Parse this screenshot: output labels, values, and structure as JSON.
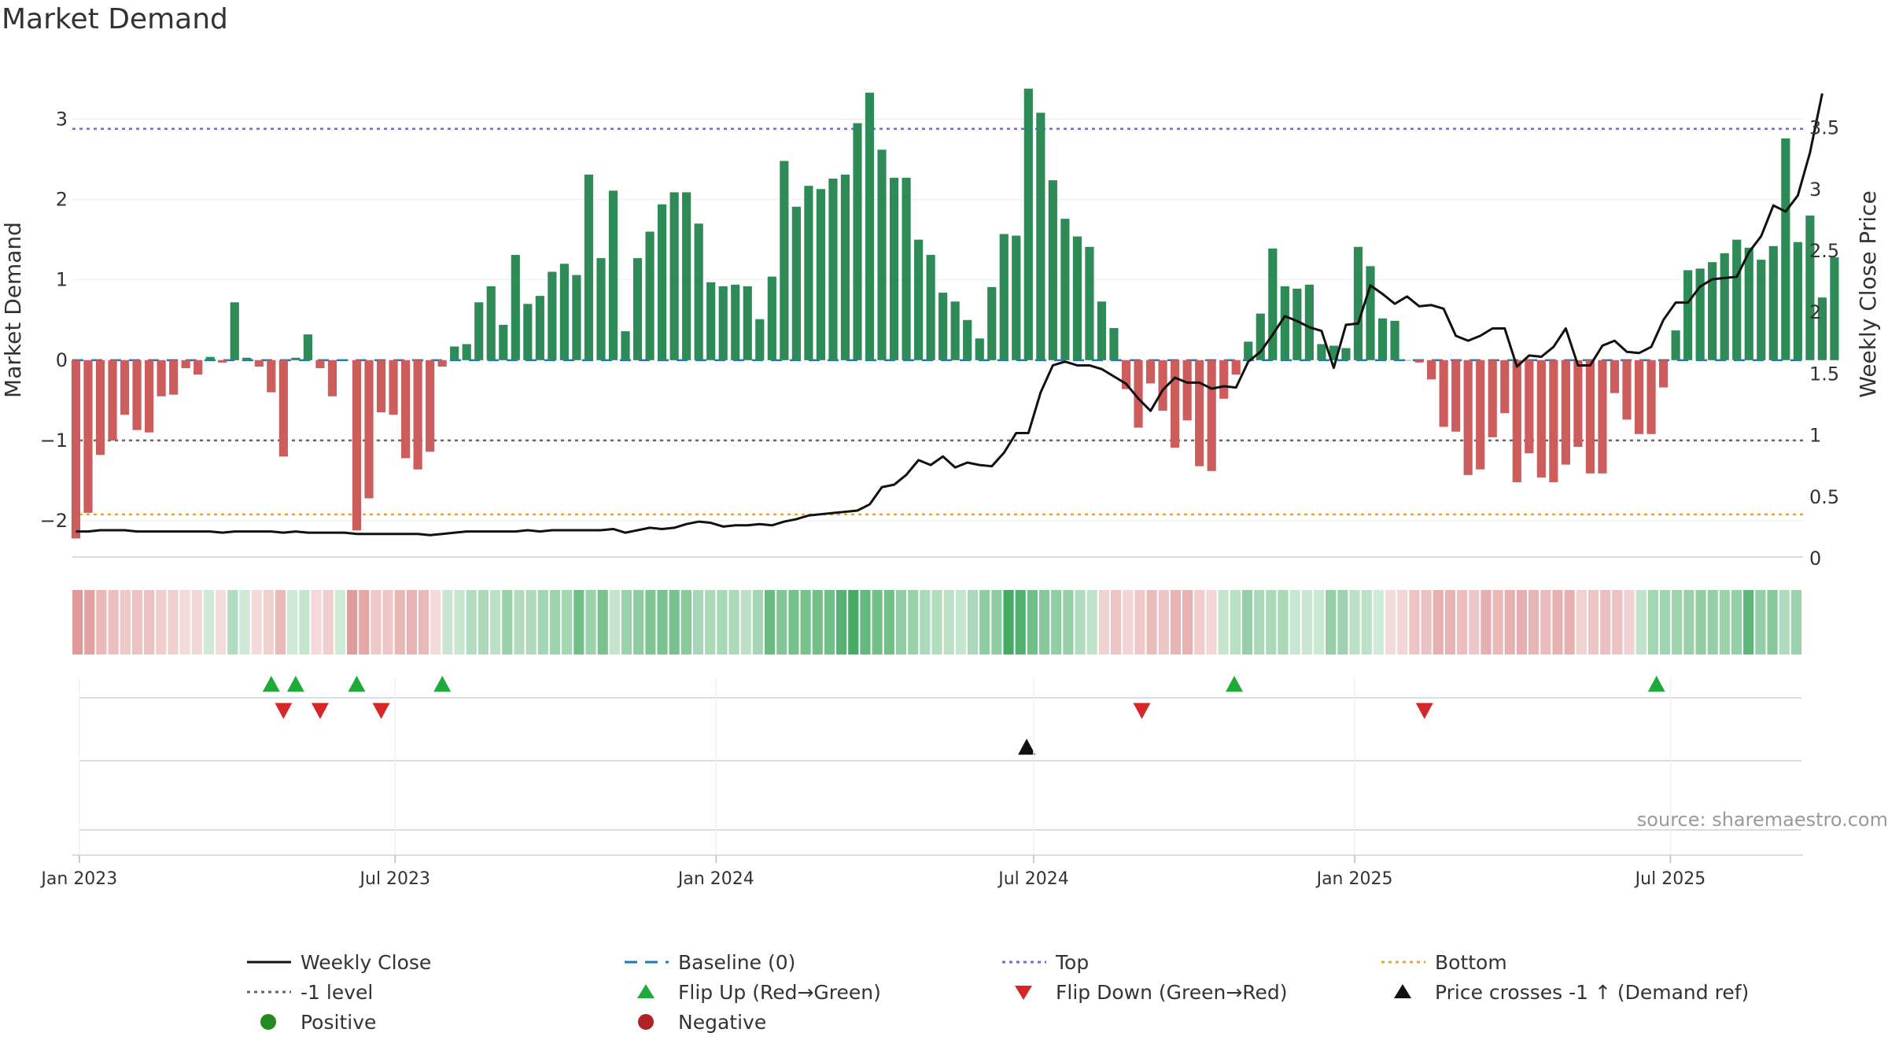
{
  "title": "Market Demand",
  "source_text": "source: sharemaestro.com",
  "colors": {
    "positive_bar": "#2e8b57",
    "negative_bar": "#cd5c5c",
    "price_line": "#111111",
    "baseline": "#1f77b4",
    "top": "#6a6ad8",
    "bottom": "#e6a23c",
    "minus1": "#666666",
    "flip_up": "#1faa3a",
    "flip_down": "#d62728",
    "price_cross": "#111111",
    "positive_dot": "#228b22",
    "negative_dot": "#b22222"
  },
  "chart_data": {
    "type": "bar",
    "title": "Market Demand",
    "ylabel": "Market Demand",
    "y2label": "Weekly Close Price",
    "ylim": [
      -2.45,
      3.7
    ],
    "y2lim": [
      0,
      3.9
    ],
    "y_ticks": [
      3,
      2,
      1,
      0,
      -1,
      -2
    ],
    "y2_ticks": [
      3.5,
      3,
      2.5,
      2,
      1.5,
      1,
      0.5,
      0
    ],
    "x_range": [
      "2022-12-28",
      "2025-09-15"
    ],
    "x_ticks": [
      {
        "date": "2023-01-01",
        "label": "Jan 2023"
      },
      {
        "date": "2023-07-01",
        "label": "Jul 2023"
      },
      {
        "date": "2024-01-01",
        "label": "Jan 2024"
      },
      {
        "date": "2024-07-01",
        "label": "Jul 2024"
      },
      {
        "date": "2025-01-01",
        "label": "Jan 2025"
      },
      {
        "date": "2025-07-01",
        "label": "Jul 2025"
      }
    ],
    "weeks_start": "2022-12-30",
    "demand": [
      -2.22,
      -1.9,
      -1.18,
      -1.0,
      -0.68,
      -0.87,
      -0.9,
      -0.45,
      -0.43,
      -0.1,
      -0.18,
      0.04,
      -0.03,
      0.72,
      0.03,
      -0.08,
      -0.4,
      -1.2,
      0.03,
      0.32,
      -0.1,
      -0.45,
      0.0,
      -2.12,
      -1.72,
      -0.65,
      -0.68,
      -1.22,
      -1.36,
      -1.14,
      -0.08,
      0.17,
      0.2,
      0.72,
      0.92,
      0.44,
      1.31,
      0.7,
      0.8,
      1.1,
      1.2,
      1.06,
      2.31,
      1.27,
      2.11,
      0.36,
      1.27,
      1.6,
      1.94,
      2.09,
      2.09,
      1.7,
      0.97,
      0.92,
      0.94,
      0.92,
      0.51,
      1.04,
      2.48,
      1.91,
      2.17,
      2.13,
      2.26,
      2.31,
      2.95,
      3.33,
      2.62,
      2.27,
      2.27,
      1.5,
      1.31,
      0.84,
      0.73,
      0.5,
      0.27,
      0.91,
      1.57,
      1.55,
      3.38,
      3.08,
      2.24,
      1.76,
      1.54,
      1.41,
      0.73,
      0.4,
      -0.36,
      -0.84,
      -0.29,
      -0.63,
      -1.09,
      -0.75,
      -1.32,
      -1.38,
      -0.48,
      -0.18,
      0.23,
      0.58,
      1.39,
      0.92,
      0.89,
      0.94,
      0.2,
      0.18,
      0.15,
      1.41,
      1.17,
      0.52,
      0.49,
      0.0,
      -0.03,
      -0.24,
      -0.83,
      -0.89,
      -1.43,
      -1.36,
      -0.96,
      -0.66,
      -1.52,
      -1.16,
      -1.46,
      -1.52,
      -1.3,
      -1.08,
      -1.41,
      -1.41,
      -0.41,
      -0.74,
      -0.92,
      -0.92,
      -0.34,
      0.37,
      1.12,
      1.14,
      1.22,
      1.33,
      1.5,
      1.4,
      1.25,
      1.42,
      2.76,
      1.47,
      1.8,
      0.78,
      1.28
    ],
    "close": [
      0.22,
      0.22,
      0.23,
      0.23,
      0.23,
      0.22,
      0.22,
      0.22,
      0.22,
      0.22,
      0.22,
      0.22,
      0.21,
      0.22,
      0.22,
      0.22,
      0.22,
      0.21,
      0.22,
      0.21,
      0.21,
      0.21,
      0.21,
      0.2,
      0.2,
      0.2,
      0.2,
      0.2,
      0.2,
      0.19,
      0.2,
      0.21,
      0.22,
      0.22,
      0.22,
      0.22,
      0.22,
      0.23,
      0.22,
      0.23,
      0.23,
      0.23,
      0.23,
      0.23,
      0.24,
      0.21,
      0.23,
      0.25,
      0.24,
      0.25,
      0.28,
      0.3,
      0.29,
      0.26,
      0.27,
      0.27,
      0.28,
      0.27,
      0.3,
      0.32,
      0.35,
      0.36,
      0.37,
      0.38,
      0.39,
      0.44,
      0.58,
      0.6,
      0.68,
      0.8,
      0.76,
      0.83,
      0.74,
      0.78,
      0.76,
      0.75,
      0.86,
      1.02,
      1.02,
      1.35,
      1.57,
      1.6,
      1.57,
      1.57,
      1.54,
      1.48,
      1.42,
      1.3,
      1.2,
      1.37,
      1.47,
      1.43,
      1.43,
      1.38,
      1.4,
      1.39,
      1.6,
      1.68,
      1.82,
      1.97,
      1.93,
      1.88,
      1.85,
      1.55,
      1.9,
      1.91,
      2.22,
      2.15,
      2.07,
      2.13,
      2.05,
      2.06,
      2.03,
      1.81,
      1.77,
      1.81,
      1.87,
      1.87,
      1.56,
      1.65,
      1.64,
      1.72,
      1.87,
      1.57,
      1.57,
      1.73,
      1.77,
      1.68,
      1.67,
      1.72,
      1.94,
      2.08,
      2.08,
      2.21,
      2.27,
      2.28,
      2.29,
      2.49,
      2.62,
      2.87,
      2.82,
      2.95,
      3.3,
      3.78
    ],
    "levels": {
      "top": 2.88,
      "minus1": -1.0,
      "bottom": -1.92
    },
    "events": {
      "flip_up": [
        "2023-04-21",
        "2023-05-05",
        "2023-06-09",
        "2023-07-28",
        "2024-10-24",
        "2025-06-23"
      ],
      "flip_down": [
        "2023-04-28",
        "2023-05-19",
        "2023-06-23",
        "2024-09-01",
        "2025-02-10"
      ],
      "price_crosses_minus1": [
        "2024-06-27"
      ]
    }
  },
  "legend": {
    "weekly_close": "Weekly Close",
    "baseline": "Baseline (0)",
    "top": "Top",
    "bottom": "Bottom",
    "minus1": "-1 level",
    "flip_up": "Flip Up (Red→Green)",
    "flip_down": "Flip Down (Green→Red)",
    "price_cross": "Price crosses -1 ↑ (Demand ref)",
    "positive": "Positive",
    "negative": "Negative"
  }
}
